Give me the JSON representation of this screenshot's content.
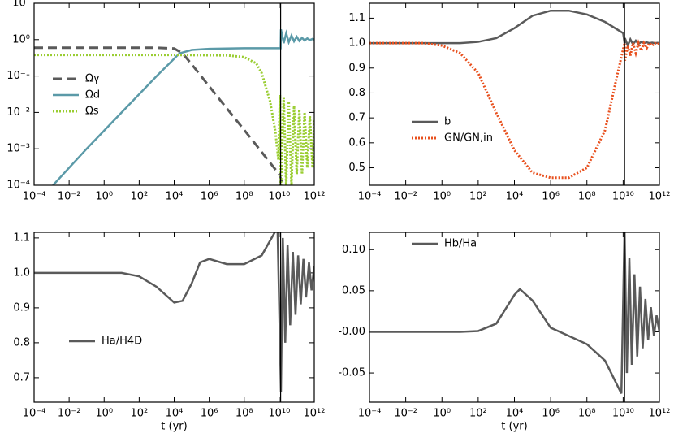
{
  "chart_data": [
    {
      "type": "line",
      "log_x": true,
      "log_y": true,
      "xlim": [
        0.0001,
        1000000000000.0
      ],
      "ylim": [
        0.0001,
        10
      ],
      "vline": 12000000000.0,
      "xticks": [
        {
          "value": 0.0001,
          "label": "10⁻⁴"
        },
        {
          "value": 0.01,
          "label": "10⁻²"
        },
        {
          "value": 1,
          "label": "10⁰"
        },
        {
          "value": 100,
          "label": "10²"
        },
        {
          "value": 10000.0,
          "label": "10⁴"
        },
        {
          "value": 1000000.0,
          "label": "10⁶"
        },
        {
          "value": 100000000.0,
          "label": "10⁸"
        },
        {
          "value": 10000000000.0,
          "label": "10¹⁰"
        },
        {
          "value": 1000000000000.0,
          "label": "10¹²"
        }
      ],
      "yticks": [
        {
          "value": 0.0001,
          "label": "10⁻⁴"
        },
        {
          "value": 0.001,
          "label": "10⁻³"
        },
        {
          "value": 0.01,
          "label": "10⁻²"
        },
        {
          "value": 0.1,
          "label": "10⁻¹"
        },
        {
          "value": 1,
          "label": "10⁰"
        },
        {
          "value": 10,
          "label": "10¹"
        }
      ],
      "series": [
        {
          "name": "Ωγ",
          "color": "#5a5a5a",
          "style": "dashed",
          "x": [
            0.0001,
            1000.0,
            10000.0,
            30000.0,
            100000.0,
            1000000.0,
            10000000.0,
            100000000.0,
            1000000000.0,
            10000000000.0,
            16000000000.0
          ],
          "values": [
            0.6,
            0.6,
            0.57,
            0.42,
            0.21,
            0.052,
            0.013,
            0.0033,
            0.00081,
            0.0002,
            0.0001
          ]
        },
        {
          "name": "Ωd",
          "color": "#5b9aa8",
          "style": "solid",
          "x": [
            0.0012,
            0.1,
            10,
            1000.0,
            10000.0,
            20000.0,
            100000.0,
            1000000.0,
            100000000.0,
            12000000000.0,
            12500000000.0,
            18000000000.0,
            25000000000.0,
            35000000000.0,
            50000000000.0,
            70000000000.0,
            100000000000.0,
            140000000000.0,
            200000000000.0,
            280000000000.0,
            400000000000.0,
            560000000000.0,
            800000000000.0,
            1000000000000.0
          ],
          "values": [
            0.0001,
            0.001,
            0.01,
            0.1,
            0.3,
            0.42,
            0.52,
            0.56,
            0.58,
            0.58,
            1.9,
            0.8,
            1.5,
            0.85,
            1.3,
            0.9,
            1.2,
            0.92,
            1.12,
            0.95,
            1.08,
            0.97,
            1.05,
            1.0
          ]
        },
        {
          "name": "Ωs",
          "color": "#9acd32",
          "style": "dotted",
          "x": [
            0.0001,
            10000.0,
            10000000.0,
            100000000.0,
            500000000.0,
            1000000000.0,
            3000000000.0,
            6000000000.0,
            9000000000.0,
            11000000000.0,
            12500000000.0,
            18000000000.0,
            25000000000.0,
            35000000000.0,
            50000000000.0,
            70000000000.0,
            100000000000.0,
            140000000000.0,
            200000000000.0,
            280000000000.0,
            400000000000.0,
            560000000000.0,
            800000000000.0,
            1000000000000.0
          ],
          "values": [
            0.38,
            0.38,
            0.37,
            0.33,
            0.22,
            0.12,
            0.02,
            0.003,
            0.0005,
            0.03,
            0.0001,
            0.025,
            0.0001,
            0.02,
            0.0001,
            0.015,
            0.0002,
            0.012,
            0.0002,
            0.01,
            0.0003,
            0.008,
            0.0003,
            0.006
          ]
        }
      ]
    },
    {
      "type": "line",
      "log_x": true,
      "log_y": false,
      "xlim": [
        0.0001,
        1000000000000.0
      ],
      "ylim": [
        0.43,
        1.16
      ],
      "vline": 12000000000.0,
      "xticks": [
        {
          "value": 0.0001,
          "label": "10⁻⁴"
        },
        {
          "value": 0.01,
          "label": "10⁻²"
        },
        {
          "value": 1,
          "label": "10⁰"
        },
        {
          "value": 100,
          "label": "10²"
        },
        {
          "value": 10000.0,
          "label": "10⁴"
        },
        {
          "value": 1000000.0,
          "label": "10⁶"
        },
        {
          "value": 100000000.0,
          "label": "10⁸"
        },
        {
          "value": 10000000000.0,
          "label": "10¹⁰"
        },
        {
          "value": 1000000000000.0,
          "label": "10¹²"
        }
      ],
      "yticks": [
        0.5,
        0.6,
        0.7,
        0.8,
        0.9,
        {
          "value": 1,
          "label": "1.0"
        },
        1.1
      ],
      "series": [
        {
          "name": "b",
          "color": "#5a5a5a",
          "style": "solid",
          "x": [
            0.0001,
            10,
            100,
            1000.0,
            10000.0,
            100000.0,
            1000000.0,
            10000000.0,
            100000000.0,
            1000000000.0,
            10000000000.0,
            12000000000.0,
            12500000000.0,
            18000000000.0,
            25000000000.0,
            35000000000.0,
            50000000000.0,
            70000000000.0,
            100000000000.0,
            140000000000.0,
            200000000000.0,
            280000000000.0,
            400000000000.0,
            560000000000.0,
            800000000000.0,
            1000000000000.0
          ],
          "values": [
            1,
            1,
            1.005,
            1.02,
            1.06,
            1.11,
            1.13,
            1.13,
            1.115,
            1.085,
            1.04,
            1.0,
            1.02,
            0.99,
            1.015,
            0.995,
            1.01,
            0.997,
            1.005,
            1,
            1.003,
            1,
            1.002,
            1,
            1.001,
            1
          ]
        },
        {
          "name": "GN/GN,in",
          "color": "#e8501e",
          "style": "dotted",
          "x": [
            0.0001,
            0.1,
            1,
            10,
            100,
            1000.0,
            10000.0,
            100000.0,
            1000000.0,
            10000000.0,
            100000000.0,
            1000000000.0,
            5000000000.0,
            12000000000.0,
            12500000000.0,
            18000000000.0,
            25000000000.0,
            35000000000.0,
            50000000000.0,
            70000000000.0,
            100000000000.0,
            140000000000.0,
            200000000000.0,
            280000000000.0,
            400000000000.0,
            560000000000.0,
            800000000000.0,
            1000000000000.0
          ],
          "values": [
            1,
            1,
            0.99,
            0.96,
            0.88,
            0.72,
            0.57,
            0.48,
            0.46,
            0.46,
            0.5,
            0.65,
            0.88,
            1.0,
            0.93,
            0.99,
            0.95,
            1.0,
            0.96,
            1.0,
            0.97,
            1.0,
            0.98,
            1.0,
            0.99,
            1.0,
            0.995,
            1.0
          ]
        }
      ]
    },
    {
      "type": "line",
      "log_x": true,
      "log_y": false,
      "xlim": [
        0.0001,
        1000000000000.0
      ],
      "ylim": [
        0.63,
        1.116
      ],
      "vline": 12000000000.0,
      "xlabel": "t (yr)",
      "xticks": [
        {
          "value": 0.0001,
          "label": "10⁻⁴"
        },
        {
          "value": 0.01,
          "label": "10⁻²"
        },
        {
          "value": 1,
          "label": "10⁰"
        },
        {
          "value": 100,
          "label": "10²"
        },
        {
          "value": 10000.0,
          "label": "10⁴"
        },
        {
          "value": 1000000.0,
          "label": "10⁶"
        },
        {
          "value": 100000000.0,
          "label": "10⁸"
        },
        {
          "value": 10000000000.0,
          "label": "10¹⁰"
        },
        {
          "value": 1000000000000.0,
          "label": "10¹²"
        }
      ],
      "yticks": [
        0.7,
        0.8,
        0.9,
        {
          "value": 1,
          "label": "1.0"
        },
        1.1
      ],
      "series": [
        {
          "name": "Ha/H4D",
          "color": "#5a5a5a",
          "style": "solid",
          "x": [
            0.0001,
            10,
            100,
            1000.0,
            10000.0,
            30000.0,
            100000.0,
            300000.0,
            1000000.0,
            10000000.0,
            100000000.0,
            1000000000.0,
            8000000000.0,
            12500000000.0,
            16000000000.0,
            22000000000.0,
            30000000000.0,
            42000000000.0,
            60000000000.0,
            85000000000.0,
            120000000000.0,
            170000000000.0,
            240000000000.0,
            340000000000.0,
            500000000000.0,
            700000000000.0,
            1000000000000.0
          ],
          "values": [
            1,
            1,
            0.99,
            0.96,
            0.915,
            0.92,
            0.97,
            1.03,
            1.04,
            1.025,
            1.025,
            1.05,
            1.13,
            0.66,
            1.1,
            0.8,
            1.08,
            0.85,
            1.06,
            0.88,
            1.05,
            0.91,
            1.04,
            0.93,
            1.03,
            0.95,
            1.02
          ]
        }
      ]
    },
    {
      "type": "line",
      "log_x": true,
      "log_y": false,
      "xlim": [
        0.0001,
        1000000000000.0
      ],
      "ylim": [
        -0.0855,
        0.121
      ],
      "vline": 12000000000.0,
      "xlabel": "t (yr)",
      "xticks": [
        {
          "value": 0.0001,
          "label": "10⁻⁴"
        },
        {
          "value": 0.01,
          "label": "10⁻²"
        },
        {
          "value": 1,
          "label": "10⁰"
        },
        {
          "value": 100,
          "label": "10²"
        },
        {
          "value": 10000.0,
          "label": "10⁴"
        },
        {
          "value": 1000000.0,
          "label": "10⁶"
        },
        {
          "value": 100000000.0,
          "label": "10⁸"
        },
        {
          "value": 10000000000.0,
          "label": "10¹⁰"
        },
        {
          "value": 1000000000000.0,
          "label": "10¹²"
        }
      ],
      "yticks": [
        -0.05,
        {
          "value": 0,
          "label": "-0.00"
        },
        0.05,
        {
          "value": 0.1,
          "label": "0.10"
        }
      ],
      "series": [
        {
          "name": "Hb/Ha",
          "color": "#5a5a5a",
          "style": "solid",
          "x": [
            0.0001,
            10,
            100,
            1000.0,
            10000.0,
            20000.0,
            100000.0,
            1000000.0,
            10000000.0,
            100000000.0,
            1000000000.0,
            8000000000.0,
            12000000000.0,
            16000000000.0,
            22000000000.0,
            30000000000.0,
            42000000000.0,
            60000000000.0,
            85000000000.0,
            120000000000.0,
            170000000000.0,
            240000000000.0,
            340000000000.0,
            500000000000.0,
            700000000000.0,
            1000000000000.0
          ],
          "values": [
            0,
            0,
            0.001,
            0.01,
            0.045,
            0.052,
            0.038,
            0.005,
            -0.005,
            -0.015,
            -0.035,
            -0.075,
            0.125,
            -0.05,
            0.09,
            -0.04,
            0.07,
            -0.03,
            0.055,
            -0.02,
            0.04,
            -0.01,
            0.03,
            -0.005,
            0.02,
            0.0
          ]
        }
      ]
    }
  ]
}
